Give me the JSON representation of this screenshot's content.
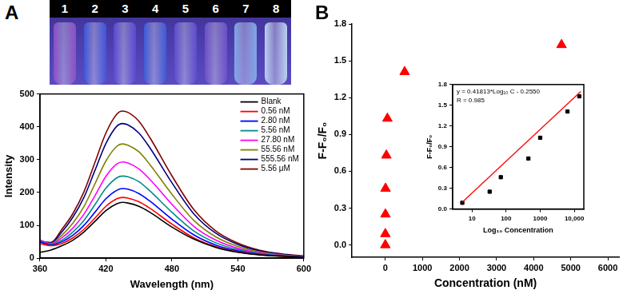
{
  "panels": [
    "A",
    "B"
  ],
  "photo": {
    "labels": [
      "1",
      "2",
      "3",
      "4",
      "5",
      "6",
      "7",
      "8"
    ]
  },
  "chart_data": [
    {
      "type": "line",
      "x": [
        360,
        370,
        380,
        390,
        400,
        410,
        420,
        430,
        435,
        440,
        450,
        460,
        480,
        500,
        520,
        540,
        560,
        580,
        600
      ],
      "series": [
        {
          "name": "Blank",
          "color": "#000000",
          "values": [
            18,
            25,
            38,
            55,
            80,
            112,
            145,
            166,
            170,
            168,
            158,
            140,
            95,
            58,
            33,
            18,
            10,
            6,
            3
          ]
        },
        {
          "name": "0.56 nM",
          "color": "#ff0000",
          "values": [
            45,
            38,
            45,
            62,
            88,
            122,
            158,
            181,
            185,
            183,
            172,
            152,
            104,
            62,
            35,
            19,
            11,
            6,
            3
          ]
        },
        {
          "name": "2.80 nM",
          "color": "#0000ff",
          "values": [
            50,
            40,
            50,
            70,
            100,
            140,
            181,
            207,
            212,
            210,
            197,
            174,
            119,
            71,
            40,
            22,
            12,
            7,
            4
          ]
        },
        {
          "name": "5.56 nM",
          "color": "#008b8b",
          "values": [
            52,
            42,
            55,
            80,
            115,
            163,
            213,
            245,
            250,
            248,
            233,
            205,
            140,
            83,
            47,
            26,
            14,
            8,
            4
          ]
        },
        {
          "name": "27.80 nM",
          "color": "#ff00ff",
          "values": [
            55,
            44,
            62,
            92,
            134,
            190,
            249,
            287,
            293,
            290,
            272,
            240,
            164,
            97,
            55,
            30,
            16,
            9,
            5
          ]
        },
        {
          "name": "55.56 nM",
          "color": "#808000",
          "values": [
            55,
            45,
            70,
            107,
            157,
            226,
            296,
            341,
            348,
            344,
            324,
            285,
            195,
            115,
            65,
            36,
            19,
            10,
            5
          ]
        },
        {
          "name": "555.56 nM",
          "color": "#000080",
          "values": [
            52,
            47,
            80,
            125,
            185,
            267,
            349,
            402,
            410,
            406,
            381,
            336,
            230,
            135,
            76,
            42,
            22,
            12,
            6
          ]
        },
        {
          "name": "5.56 μM",
          "color": "#800000",
          "values": [
            50,
            48,
            88,
            136,
            202,
            291,
            381,
            439,
            448,
            444,
            417,
            367,
            251,
            148,
            83,
            46,
            24,
            13,
            7
          ]
        }
      ],
      "x_label": "Wavelength (nm)",
      "y_label": "Intensity",
      "xlim": [
        360,
        600
      ],
      "xticks": [
        360,
        420,
        480,
        540,
        600
      ],
      "ylim": [
        0,
        500
      ],
      "yticks": [
        0,
        100,
        200,
        300,
        400,
        500
      ],
      "grid": false,
      "legend": "upper right"
    },
    {
      "type": "scatter",
      "x": [
        0,
        0.56,
        2.8,
        5.56,
        27.8,
        55.56,
        520,
        4750
      ],
      "values": [
        0,
        0.09,
        0.25,
        0.46,
        0.73,
        1.03,
        1.41,
        1.63
      ],
      "color": "#ff0000",
      "marker": "triangle",
      "x_label": "Concentration (nM)",
      "y_label": "F-F₀/F₀",
      "xlim": [
        -900,
        6300
      ],
      "xticks": [
        0,
        1000,
        2000,
        3000,
        4000,
        5000,
        6000
      ],
      "ylim": [
        -0.1,
        1.8
      ],
      "yticks": [
        {
          "value": 0,
          "label": "0.0"
        },
        0.3,
        0.6,
        0.9,
        1.2,
        1.5,
        1.8
      ],
      "grid": false
    },
    {
      "type": "scatter",
      "x": [
        5.2,
        33,
        70,
        450,
        1000,
        6300,
        14000
      ],
      "values": [
        0.09,
        0.25,
        0.46,
        0.73,
        1.03,
        1.41,
        1.63
      ],
      "color": "#000000",
      "marker": "square",
      "fit_line": {
        "x": [
          5.2,
          15500
        ],
        "values": [
          0.1,
          1.7
        ],
        "color": "#ff0000"
      },
      "annotations": [
        "y = 0.41813*Log₁₀ C - 0.2550",
        "R = 0.985"
      ],
      "x_label": "Log₁₀ Concentration",
      "y_label": "F-F₀/F₀",
      "log": "x",
      "xlim": [
        2.7,
        19000
      ],
      "xticks": [
        10,
        100,
        1000,
        {
          "value": 10000,
          "label": "10,000"
        }
      ],
      "ylim": [
        0,
        1.8
      ],
      "yticks": [
        {
          "value": 0,
          "label": "0.0"
        },
        0.3,
        0.6,
        0.9,
        1.2,
        1.5,
        1.8
      ],
      "grid": false
    }
  ]
}
